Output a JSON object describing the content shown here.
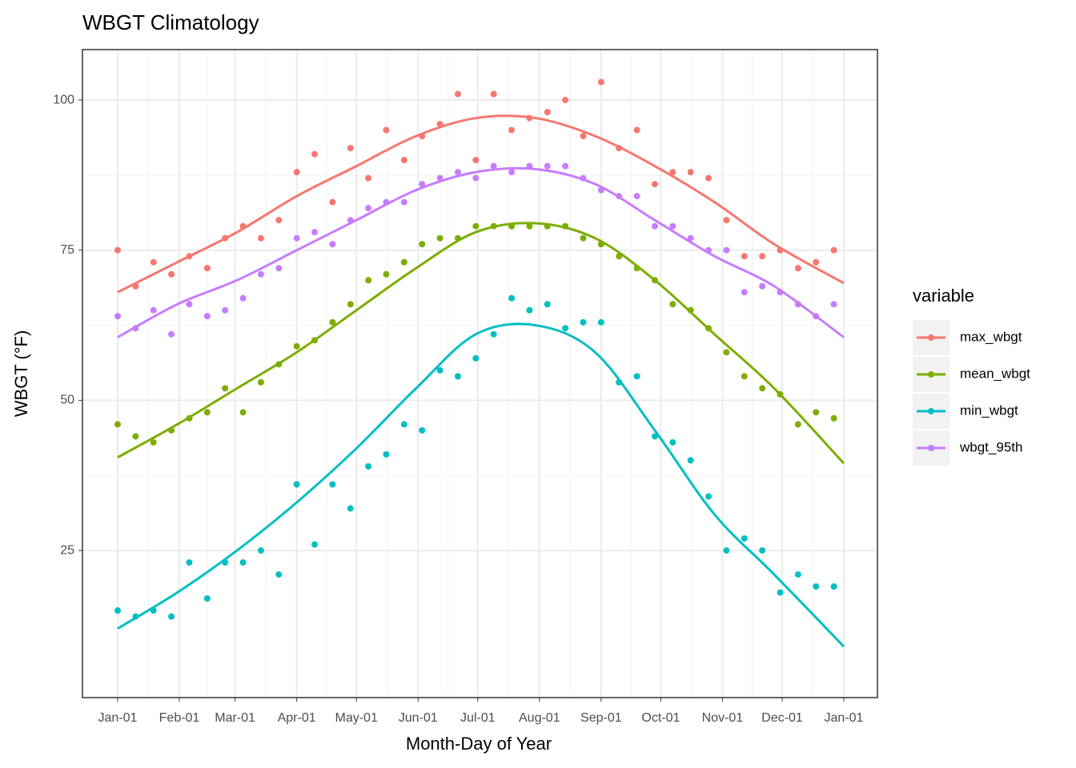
{
  "chart_data": {
    "type": "scatter-smooth",
    "title": "WBGT Climatology",
    "x_label": "Month-Day of Year",
    "y_label": "WBGT (°F)",
    "legend_title": "variable",
    "xlim": [
      -17.7,
      381.9
    ],
    "ylim": [
      0.5,
      108.4
    ],
    "xticks": [
      {
        "value": 0,
        "label": "Jan-01"
      },
      {
        "value": 31,
        "label": "Feb-01"
      },
      {
        "value": 59,
        "label": "Mar-01"
      },
      {
        "value": 90,
        "label": "Apr-01"
      },
      {
        "value": 120,
        "label": "May-01"
      },
      {
        "value": 151,
        "label": "Jun-01"
      },
      {
        "value": 181,
        "label": "Jul-01"
      },
      {
        "value": 212,
        "label": "Aug-01"
      },
      {
        "value": 243,
        "label": "Sep-01"
      },
      {
        "value": 273,
        "label": "Oct-01"
      },
      {
        "value": 304,
        "label": "Nov-01"
      },
      {
        "value": 334,
        "label": "Dec-01"
      },
      {
        "value": 365,
        "label": "Jan-01"
      }
    ],
    "yticks": [
      25,
      50,
      75,
      100
    ],
    "grid": true,
    "x": [
      0,
      9,
      18,
      27,
      36,
      45,
      54,
      63,
      72,
      81,
      90,
      99,
      108,
      117,
      126,
      135,
      144,
      153,
      162,
      171,
      180,
      189,
      198,
      207,
      216,
      225,
      234,
      243,
      252,
      261,
      270,
      279,
      288,
      297,
      306,
      315,
      324,
      333,
      342,
      351,
      360
    ],
    "smooth_x": [
      0,
      30,
      60,
      90,
      120,
      150,
      180,
      210,
      240,
      270,
      300,
      330,
      365
    ],
    "series": [
      {
        "name": "max_wbgt",
        "color": "#F8766D",
        "values": [
          75,
          69,
          73,
          71,
          74,
          72,
          77,
          79,
          77,
          80,
          88,
          91,
          83,
          92,
          87,
          95,
          90,
          94,
          96,
          101,
          90,
          101,
          95,
          97,
          98,
          100,
          94,
          103,
          92,
          95,
          86,
          88,
          88,
          87,
          80,
          74,
          74,
          75,
          72,
          73,
          75
        ],
        "smooth": [
          68,
          73,
          78,
          84,
          89,
          94,
          97,
          97,
          94,
          89,
          83,
          76,
          69.5
        ]
      },
      {
        "name": "mean_wbgt",
        "color": "#7CAE00",
        "values": [
          46,
          44,
          43,
          45,
          47,
          48,
          52,
          48,
          53,
          56,
          59,
          60,
          63,
          66,
          70,
          71,
          73,
          76,
          77,
          77,
          79,
          79,
          79,
          79,
          79,
          79,
          77,
          76,
          74,
          72,
          70,
          66,
          65,
          62,
          58,
          54,
          52,
          51,
          46,
          48,
          47
        ],
        "smooth": [
          40.5,
          46,
          52,
          58,
          65,
          72,
          78,
          79.5,
          77,
          70,
          61,
          52,
          39.5
        ]
      },
      {
        "name": "min_wbgt",
        "color": "#00BFC4",
        "values": [
          15,
          14,
          15,
          14,
          23,
          17,
          23,
          23,
          25,
          21,
          36,
          26,
          36,
          32,
          39,
          41,
          46,
          45,
          55,
          54,
          57,
          61,
          67,
          65,
          66,
          62,
          63,
          63,
          53,
          54,
          44,
          43,
          40,
          34,
          25,
          27,
          25,
          18,
          21,
          19,
          19
        ],
        "smooth": [
          12,
          18,
          25,
          33,
          42,
          52,
          61,
          62.5,
          58,
          45,
          31,
          21,
          9
        ]
      },
      {
        "name": "wbgt_95th",
        "color": "#C77CFF",
        "values": [
          64,
          62,
          65,
          61,
          66,
          64,
          65,
          67,
          71,
          72,
          77,
          78,
          76,
          80,
          82,
          83,
          83,
          86,
          87,
          88,
          87,
          89,
          88,
          89,
          89,
          89,
          87,
          85,
          84,
          84,
          79,
          79,
          77,
          75,
          75,
          68,
          69,
          68,
          66,
          64,
          66
        ],
        "smooth": [
          60.5,
          66,
          70,
          75,
          80,
          85,
          88,
          88.5,
          86,
          80,
          74,
          69,
          60.5
        ]
      }
    ]
  }
}
